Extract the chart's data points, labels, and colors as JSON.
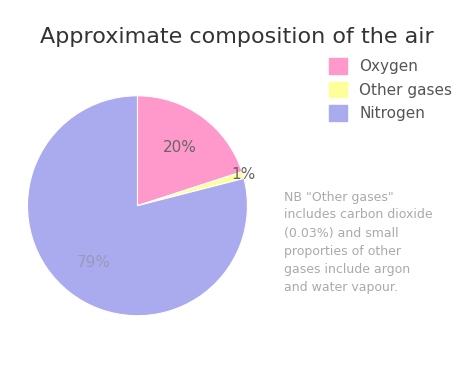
{
  "title": "Approximate composition of the air",
  "slices": [
    20,
    1,
    79
  ],
  "labels": [
    "Oxygen",
    "Other gases",
    "Nitrogen"
  ],
  "colors": [
    "#FF99CC",
    "#FFFF99",
    "#AAAAEE"
  ],
  "legend_labels": [
    "Oxygen",
    "Other gases",
    "Nitrogen"
  ],
  "note_text": "NB \"Other gases\"\nincludes carbon dioxide\n(0.03%) and small\nproporties of other\ngases include argon\nand water vapour.",
  "note_color": "#aaaaaa",
  "background_color": "#ffffff",
  "title_fontsize": 16,
  "startangle": 90,
  "pct_fontsize": 11,
  "legend_fontsize": 11,
  "note_fontsize": 9,
  "pct_colors": [
    "#666666",
    "#666666",
    "#9999bb"
  ],
  "title_color": "#333333",
  "legend_text_color": "#555555"
}
